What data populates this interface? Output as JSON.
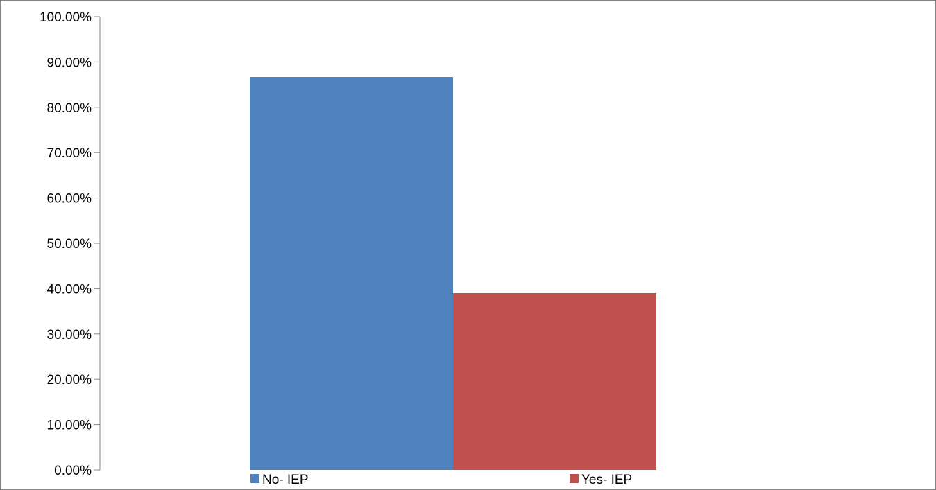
{
  "chart_data": {
    "type": "bar",
    "title": "",
    "xlabel": "",
    "ylabel": "",
    "ylim": [
      0,
      1
    ],
    "y_ticks": [
      "0.00%",
      "10.00%",
      "20.00%",
      "30.00%",
      "40.00%",
      "50.00%",
      "60.00%",
      "70.00%",
      "80.00%",
      "90.00%",
      "100.00%"
    ],
    "grid": false,
    "legend_position": "bottom",
    "series": [
      {
        "name": "No- IEP",
        "values": [
          0.867
        ],
        "color": "#4f81bd"
      },
      {
        "name": "Yes- IEP",
        "values": [
          0.39
        ],
        "color": "#c0504d"
      }
    ]
  }
}
